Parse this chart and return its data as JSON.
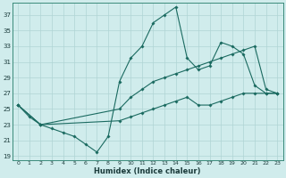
{
  "background_color": "#d0ecec",
  "line_color": "#1a6a60",
  "grid_color": "#b0d4d4",
  "xlabel": "Humidex (Indice chaleur)",
  "xlim": [
    -0.5,
    23.5
  ],
  "ylim": [
    18.5,
    38.5
  ],
  "x_ticks": [
    0,
    1,
    2,
    3,
    4,
    5,
    6,
    7,
    8,
    9,
    10,
    11,
    12,
    13,
    14,
    15,
    16,
    17,
    18,
    19,
    20,
    21,
    22,
    23
  ],
  "y_ticks": [
    19,
    21,
    23,
    25,
    27,
    29,
    31,
    33,
    35,
    37
  ],
  "series1_x": [
    0,
    1,
    2,
    3,
    4,
    5,
    6,
    7,
    8,
    9,
    10,
    11,
    12,
    13,
    14,
    15,
    16,
    17,
    18,
    19,
    20,
    21,
    22,
    23
  ],
  "series1_y": [
    25.5,
    24.0,
    23.0,
    22.5,
    22.0,
    21.5,
    20.5,
    19.5,
    21.5,
    28.5,
    31.5,
    33.0,
    36.0,
    37.0,
    38.0,
    31.5,
    30.0,
    30.5,
    33.5,
    33.0,
    32.0,
    28.0,
    27.0,
    27.0
  ],
  "series2_x": [
    0,
    2,
    9,
    10,
    11,
    12,
    13,
    14,
    15,
    16,
    17,
    18,
    19,
    20,
    21,
    22,
    23
  ],
  "series2_y": [
    25.5,
    23.0,
    25.0,
    26.5,
    27.5,
    28.5,
    29.0,
    29.5,
    30.0,
    30.5,
    31.0,
    31.5,
    32.0,
    32.5,
    33.0,
    27.5,
    27.0
  ],
  "series3_x": [
    0,
    2,
    9,
    10,
    11,
    12,
    13,
    14,
    15,
    16,
    17,
    18,
    19,
    20,
    21,
    22,
    23
  ],
  "series3_y": [
    25.5,
    23.0,
    23.5,
    24.0,
    24.5,
    25.0,
    25.5,
    26.0,
    26.5,
    25.5,
    25.5,
    26.0,
    26.5,
    27.0,
    27.0,
    27.0,
    27.0
  ]
}
